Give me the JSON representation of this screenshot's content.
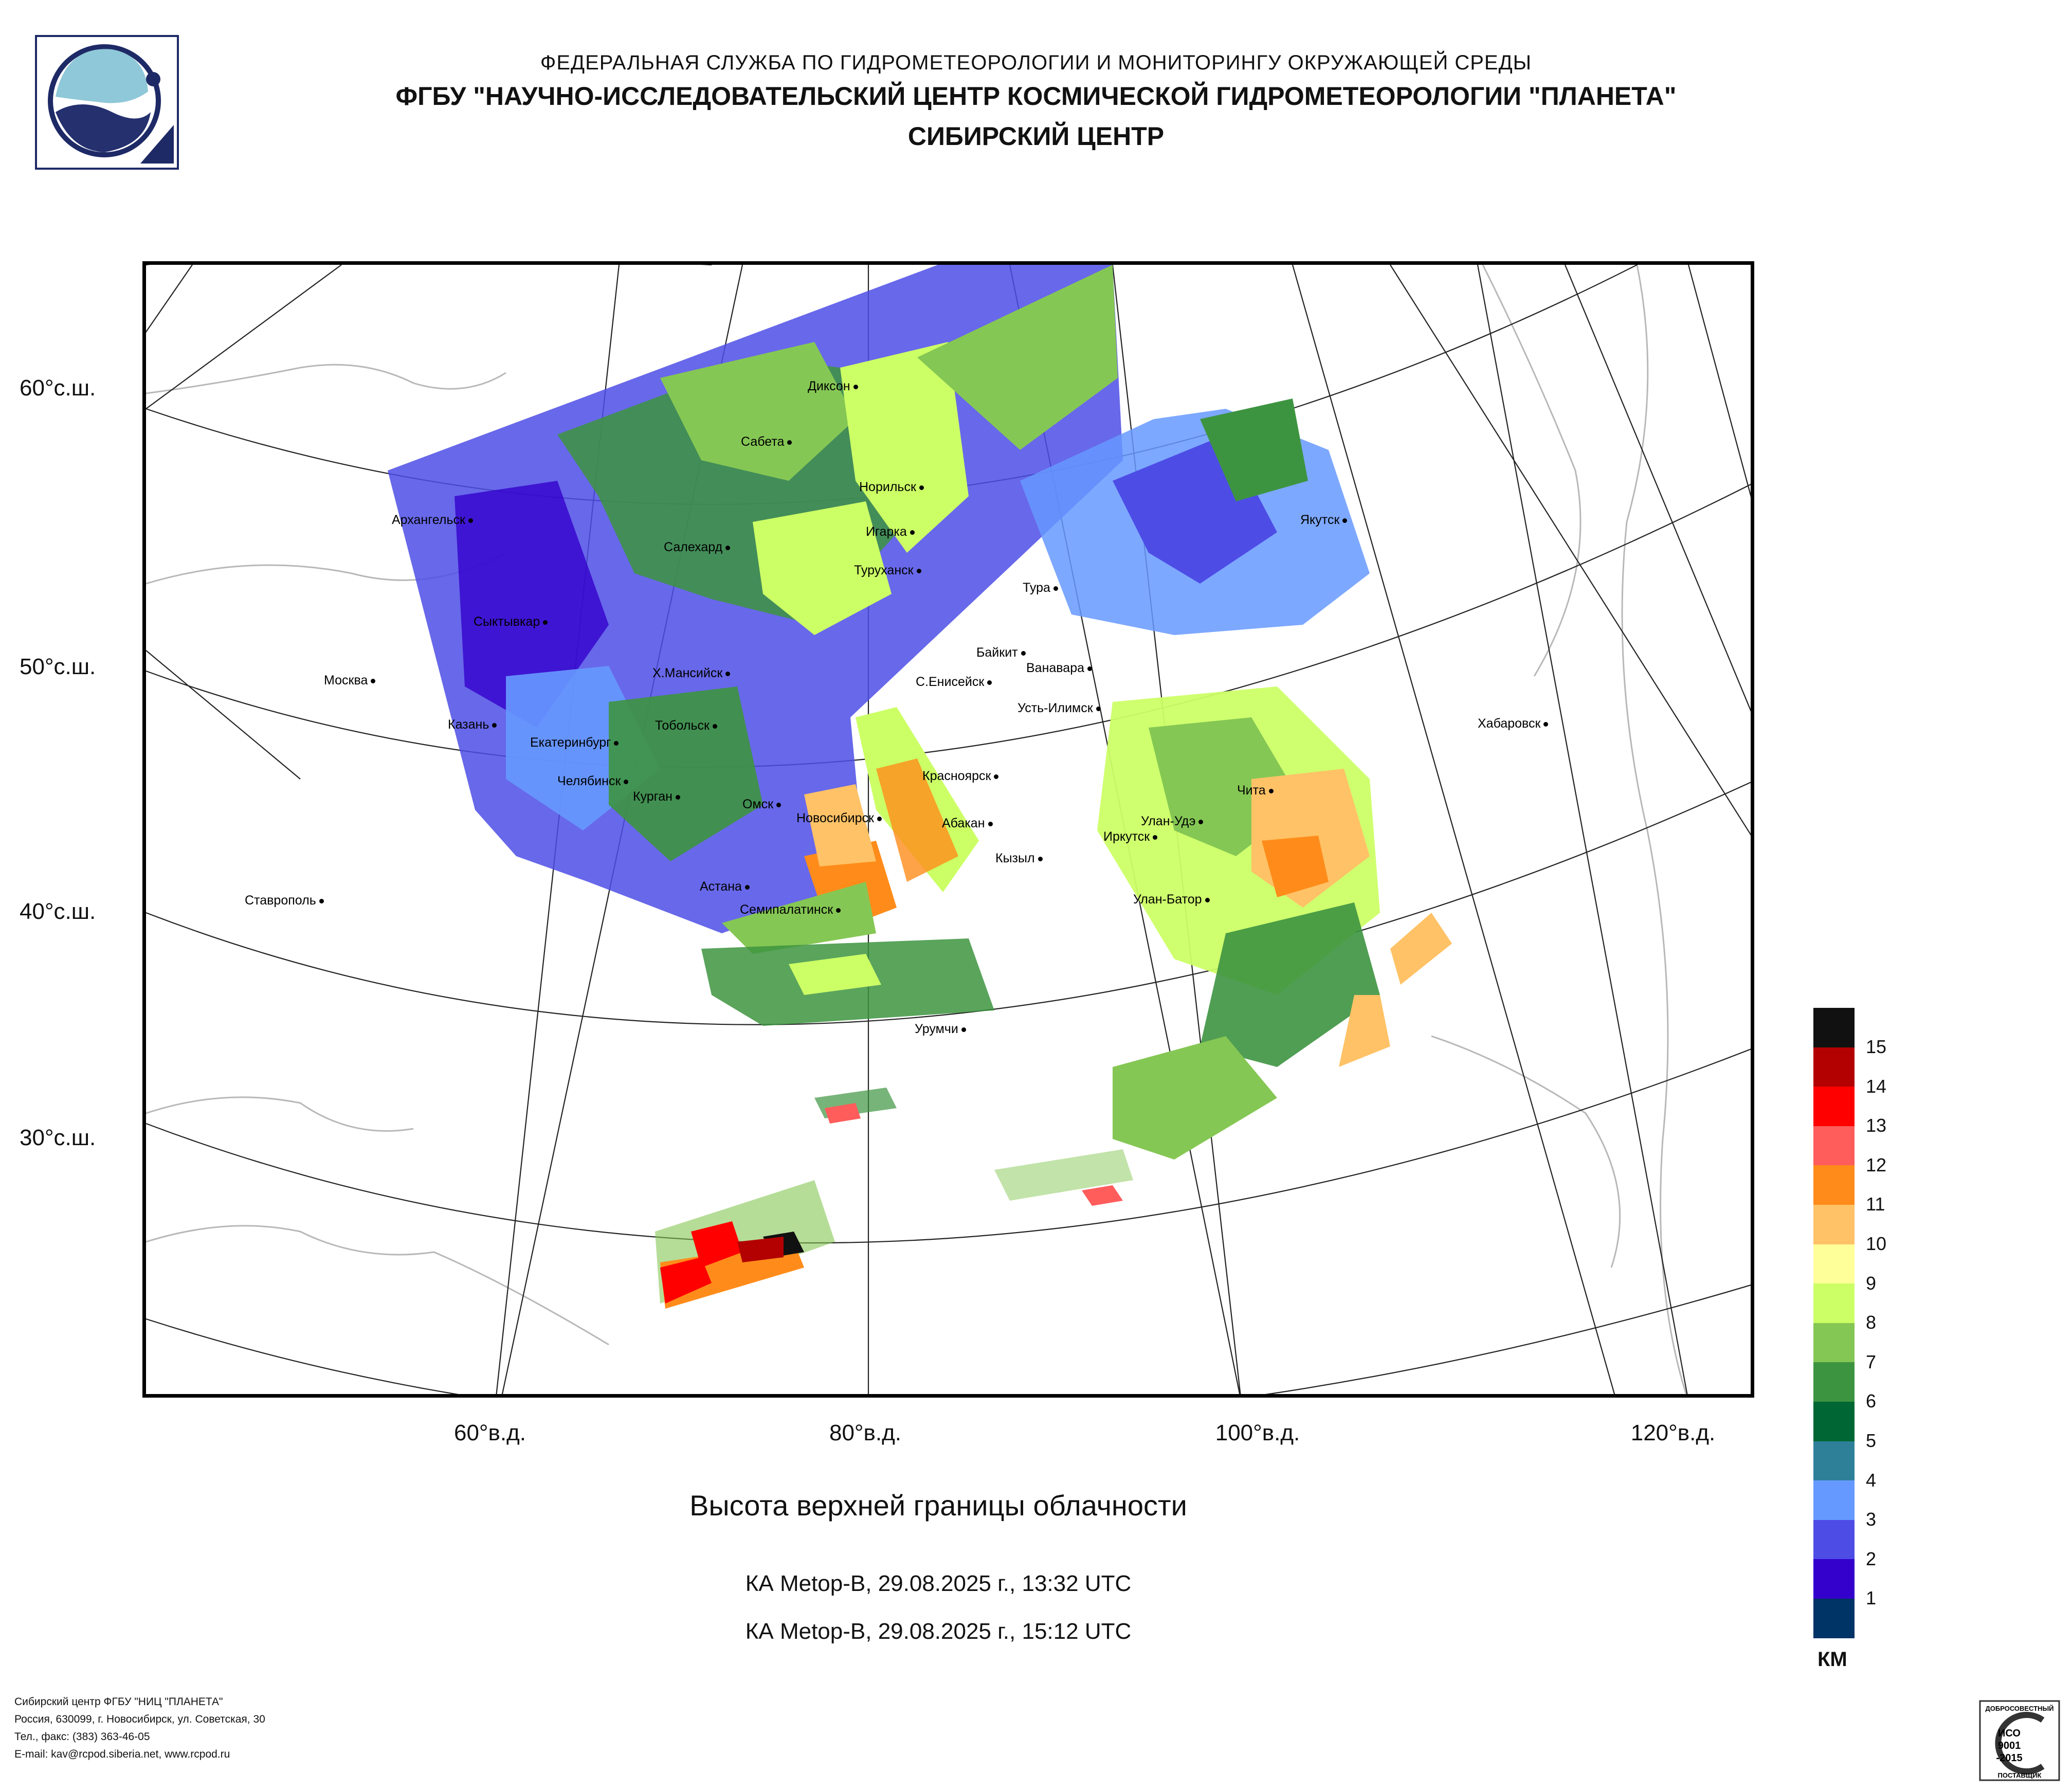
{
  "header": {
    "line1": "ФЕДЕРАЛЬНАЯ СЛУЖБА ПО ГИДРОМЕТЕОРОЛОГИИ И МОНИТОРИНГУ ОКРУЖАЮЩЕЙ СРЕДЫ",
    "line2": "ФГБУ \"НАУЧНО-ИССЛЕДОВАТЕЛЬСКИЙ ЦЕНТР КОСМИЧЕСКОЙ ГИДРОМЕТЕОРОЛОГИИ \"ПЛАНЕТА\"",
    "line3": "СИБИРСКИЙ ЦЕНТР"
  },
  "map": {
    "lat_labels": [
      "60°с.ш.",
      "50°с.ш.",
      "40°с.ш.",
      "30°с.ш."
    ],
    "lon_labels": [
      "60°в.д.",
      "80°в.д.",
      "100°в.д.",
      "120°в.д."
    ],
    "cities": [
      "Диксон",
      "Сабета",
      "Норильск",
      "Архангельск",
      "Салехард",
      "Игарка",
      "Туруханск",
      "Тура",
      "Якутск",
      "Сыктывкар",
      "Байкит",
      "Ванавара",
      "Москва",
      "Х.Мансийск",
      "С.Енисейск",
      "Усть-Илимск",
      "Хабаровск",
      "Казань",
      "Тобольск",
      "Екатеринбург",
      "Красноярск",
      "Челябинск",
      "Курган",
      "Чита",
      "Омск",
      "Новосибирск",
      "Улан-Удэ",
      "Абакан",
      "Иркутск",
      "Кызыл",
      "Ставрополь",
      "Астана",
      "Улан-Батор",
      "Семипалатинск",
      "Урумчи"
    ]
  },
  "product": {
    "title": "Высота верхней границы облачности",
    "pass1": "КА Metop-B, 29.08.2025 г., 13:32 UTC",
    "pass2": "КА Metop-B, 29.08.2025 г., 15:12 UTC"
  },
  "legend": {
    "unit": "КМ",
    "levels": [
      {
        "label": "15",
        "color": "#111111"
      },
      {
        "label": "14",
        "color": "#b30000"
      },
      {
        "label": "13",
        "color": "#ff0000"
      },
      {
        "label": "12",
        "color": "#ff5c5c"
      },
      {
        "label": "11",
        "color": "#ff8c1a"
      },
      {
        "label": "10",
        "color": "#ffc266"
      },
      {
        "label": "9",
        "color": "#ffff99"
      },
      {
        "label": "8",
        "color": "#ccff66"
      },
      {
        "label": "7",
        "color": "#85c754"
      },
      {
        "label": "6",
        "color": "#3d9440"
      },
      {
        "label": "5",
        "color": "#006633"
      },
      {
        "label": "4",
        "color": "#2e8099"
      },
      {
        "label": "3",
        "color": "#6699ff"
      },
      {
        "label": "2",
        "color": "#4d4de6"
      },
      {
        "label": "1",
        "color": "#3300cc"
      },
      {
        "label": "",
        "color": "#003366"
      }
    ]
  },
  "footer": {
    "line1": "Сибирский центр ФГБУ \"НИЦ \"ПЛАНЕТА\"",
    "line2": "Россия, 630099, г. Новосибирск, ул. Советская, 30",
    "line3": "Тел., факс: (383) 363-46-05",
    "line4": "E-mail: kav@rcpod.siberia.net, www.rcpod.ru"
  },
  "cert": {
    "top_text": "ДОБРОСОВЕСТНЫЙ",
    "mid1": "ИСО",
    "mid2": "9001",
    "mid3": "-2015",
    "bottom_text": "ПОСТАВЩИК"
  }
}
